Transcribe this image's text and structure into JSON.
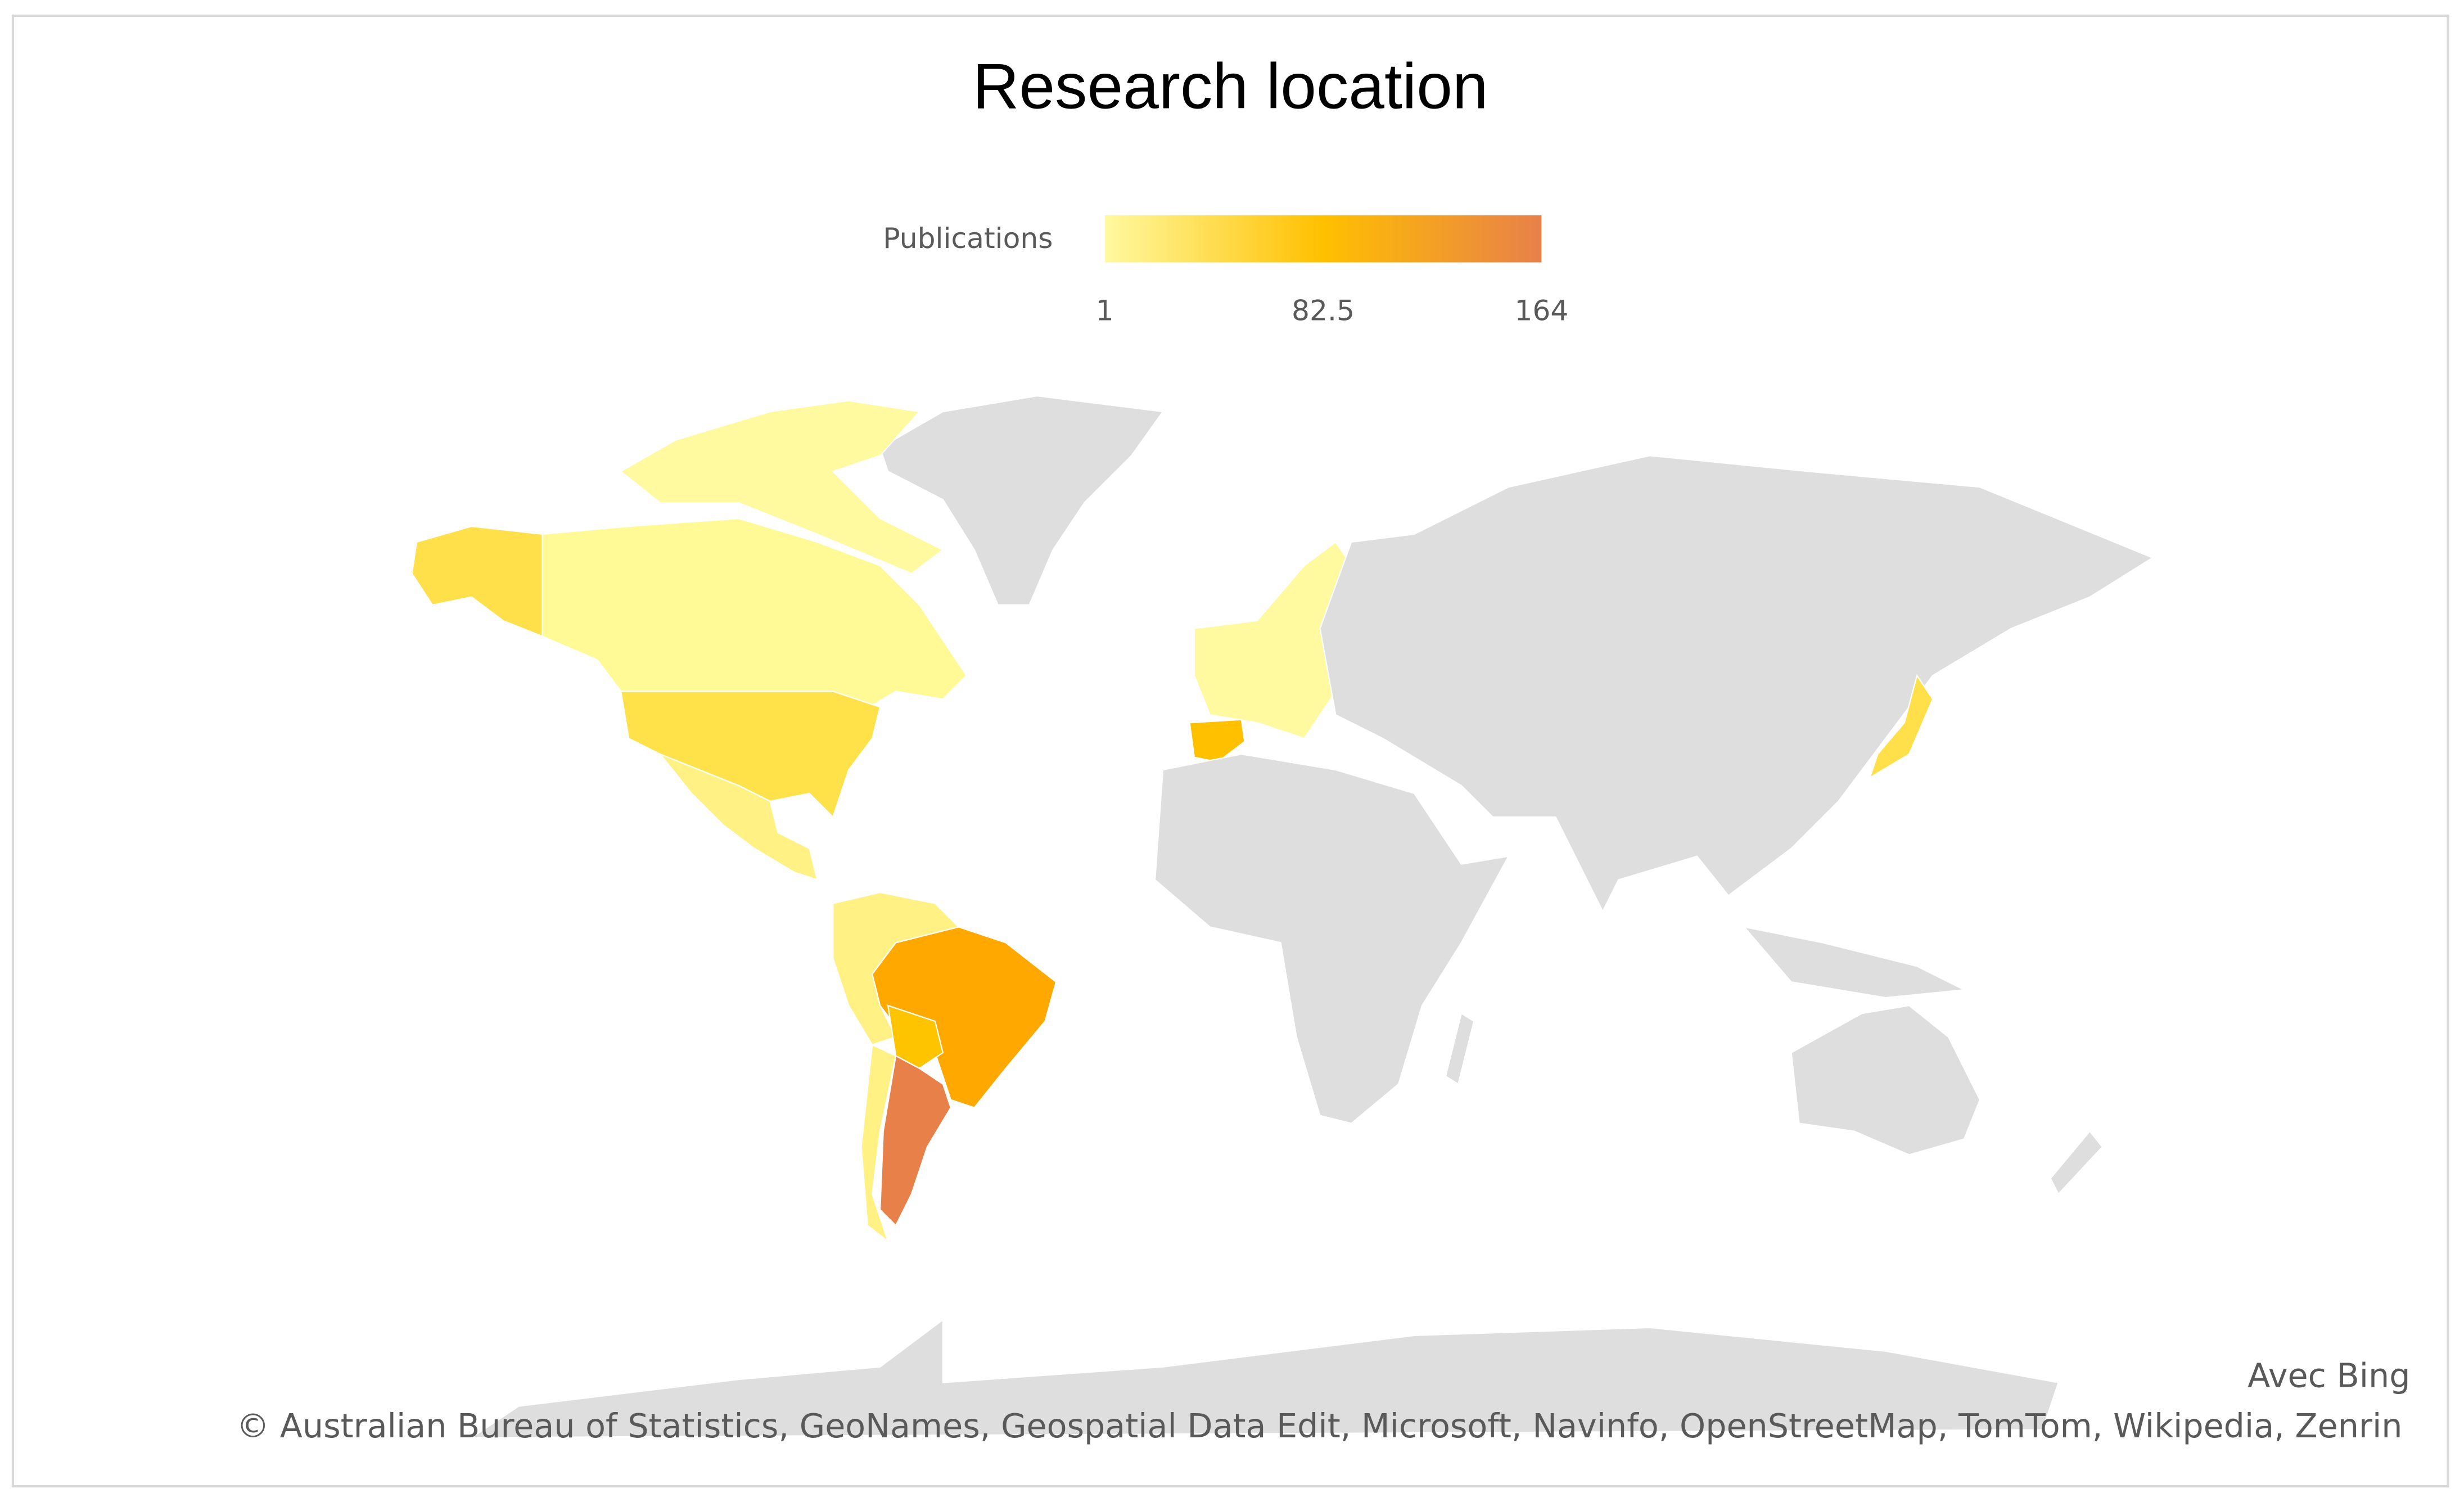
{
  "chart_data": {
    "type": "choropleth",
    "title": "Research location",
    "colorbar_title": "Publications",
    "clim": [
      1,
      164
    ],
    "cticks": [
      1,
      82.5,
      164
    ],
    "colors": [
      "#fff9a0",
      "#ffc000",
      "#e8804a"
    ],
    "source": "Avec Bing",
    "copyright": "© Australian Bureau of Statistics, GeoNames, Geospatial Data Edit, Microsoft, Navinfo, OpenStreetMap, TomTom, Wikipedia, Zenrin"
  }
}
